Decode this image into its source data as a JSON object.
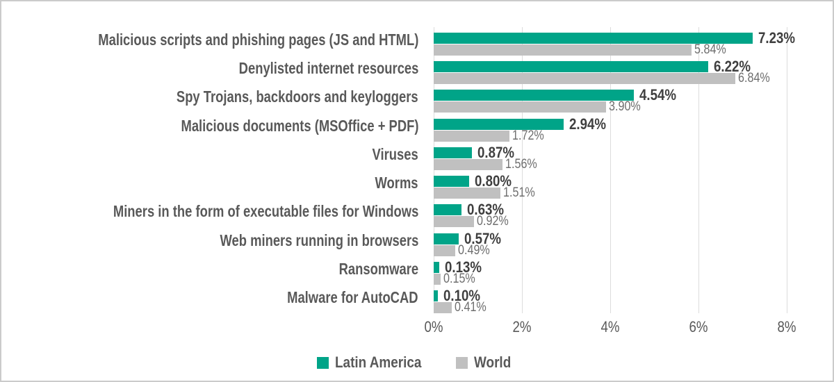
{
  "chart_data": {
    "type": "bar",
    "orientation": "horizontal",
    "categories": [
      "Malicious scripts and phishing pages (JS and HTML)",
      "Denylisted internet resources",
      "Spy Trojans, backdoors and keyloggers",
      "Malicious documents (MSOffice + PDF)",
      "Viruses",
      "Worms",
      "Miners in the form of executable files for Windows",
      "Web miners running in browsers",
      "Ransomware",
      "Malware for AutoCAD"
    ],
    "series": [
      {
        "name": "Latin America",
        "color": "#00a488",
        "values": [
          7.23,
          6.22,
          4.54,
          2.94,
          0.87,
          0.8,
          0.63,
          0.57,
          0.13,
          0.1
        ],
        "labels": [
          "7.23%",
          "6.22%",
          "4.54%",
          "2.94%",
          "0.87%",
          "0.80%",
          "0.63%",
          "0.57%",
          "0.13%",
          "0.10%"
        ]
      },
      {
        "name": "World",
        "color": "#c0c0c0",
        "values": [
          5.84,
          6.84,
          3.9,
          1.72,
          1.56,
          1.51,
          0.92,
          0.49,
          0.15,
          0.41
        ],
        "labels": [
          "5.84%",
          "6.84%",
          "3.90%",
          "1.72%",
          "1.56%",
          "1.51%",
          "0.92%",
          "0.49%",
          "0.15%",
          "0.41%"
        ]
      }
    ],
    "x_tick_values": [
      0,
      2,
      4,
      6,
      8
    ],
    "x_tick_labels": [
      "0%",
      "2%",
      "4%",
      "6%",
      "8%"
    ],
    "xlim": [
      0,
      8
    ],
    "grid": true,
    "legend_position": "bottom"
  },
  "colors": {
    "grid": "#dcdcdc",
    "category_text": "#595959",
    "latin_america_value_text": "#3f3f3f",
    "world_value_text": "#6e6e6e",
    "axis_text": "#595959",
    "legend_text": "#595959",
    "frame_border": "#cbcbcb",
    "background": "#ffffff"
  }
}
